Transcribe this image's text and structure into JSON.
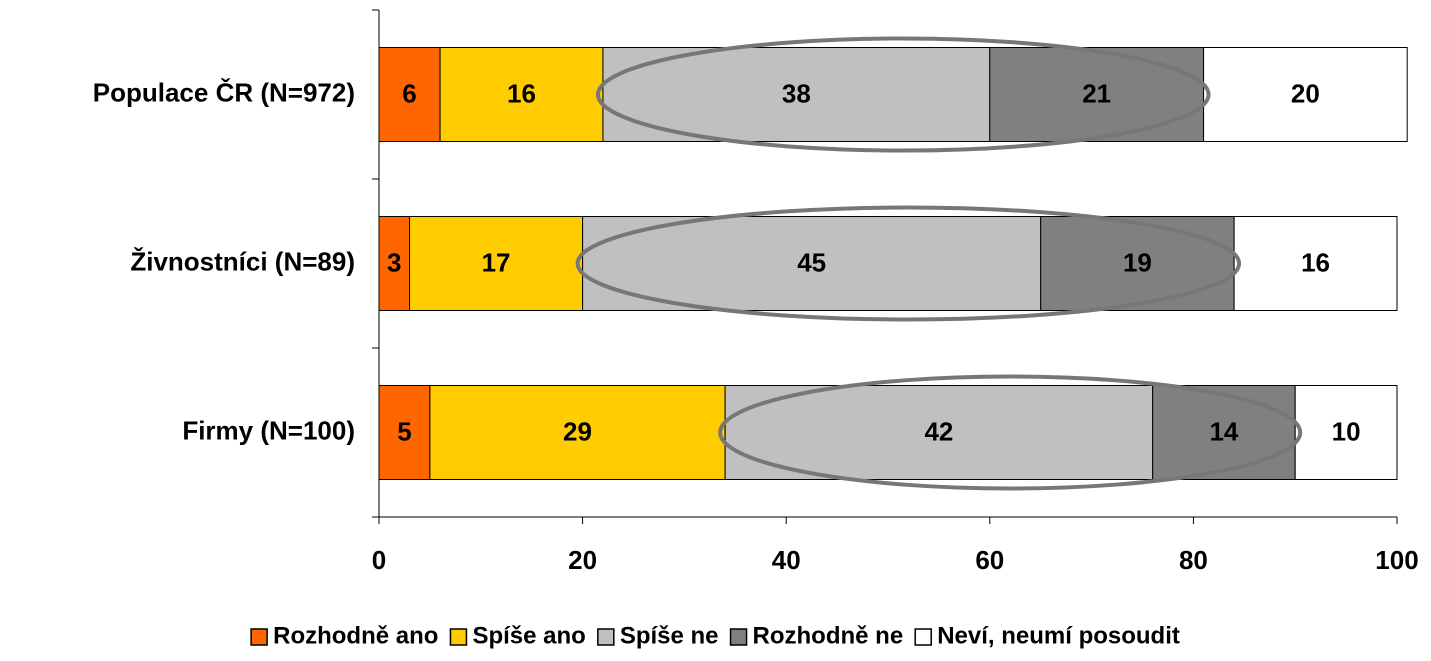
{
  "chart_data": {
    "type": "stacked-bar-horizontal",
    "categories": [
      "Populace ČR (N=972)",
      "Živnostníci (N=89)",
      "Firmy (N=100)"
    ],
    "series": [
      {
        "name": "Rozhodně ano",
        "color": "#ff6600",
        "values": [
          6,
          3,
          5
        ]
      },
      {
        "name": "Spíše ano",
        "color": "#ffcc00",
        "values": [
          16,
          17,
          29
        ]
      },
      {
        "name": "Spíše ne",
        "color": "#c0c0c0",
        "values": [
          38,
          45,
          42
        ]
      },
      {
        "name": "Rozhodně ne",
        "color": "#808080",
        "values": [
          21,
          19,
          14
        ]
      },
      {
        "name": "Neví, neumí posoudit",
        "color": "#ffffff",
        "values": [
          20,
          16,
          10
        ]
      }
    ],
    "xlim": [
      0,
      100
    ],
    "xticks": [
      0,
      20,
      40,
      60,
      80,
      100
    ],
    "legend": "bottom"
  }
}
